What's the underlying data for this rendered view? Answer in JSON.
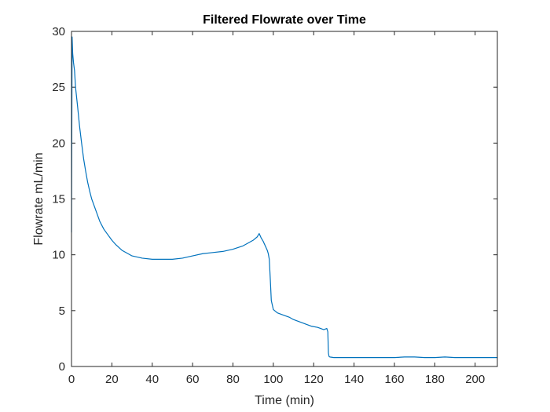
{
  "chart_data": {
    "type": "line",
    "title": "Filtered Flowrate over Time",
    "xlabel": "Time (min)",
    "ylabel": "Flowrate mL/min",
    "xlim": [
      0,
      211
    ],
    "ylim": [
      0,
      30
    ],
    "xticks": [
      0,
      20,
      40,
      60,
      80,
      100,
      120,
      140,
      160,
      180,
      200
    ],
    "yticks": [
      0,
      5,
      10,
      15,
      20,
      25,
      30
    ],
    "xtick_labels": [
      "0",
      "20",
      "40",
      "60",
      "80",
      "100",
      "120",
      "140",
      "160",
      "180",
      "200"
    ],
    "ytick_labels": [
      "0",
      "5",
      "10",
      "15",
      "20",
      "25",
      "30"
    ],
    "grid": false,
    "box": true,
    "line_color": "#0072BD",
    "axis_color": "#262626",
    "series": [
      {
        "x": [
          0,
          0.3,
          0.6,
          1,
          1.5,
          2,
          3,
          4,
          5,
          6,
          7,
          8,
          9,
          10,
          12,
          14,
          16,
          18,
          20,
          22,
          25,
          28,
          30,
          35,
          40,
          45,
          50,
          55,
          60,
          65,
          70,
          75,
          80,
          85,
          88,
          90,
          92,
          93,
          94,
          95,
          96,
          97,
          97.5,
          98,
          98.5,
          99,
          100,
          102,
          105,
          108,
          110,
          113,
          116,
          119,
          122,
          125,
          126.5,
          127,
          127.3,
          127.6,
          128,
          130,
          135,
          140,
          145,
          150,
          155,
          160,
          165,
          170,
          175,
          180,
          185,
          190,
          195,
          200,
          205,
          211
        ],
        "y": [
          12,
          29.5,
          28,
          27.2,
          26.5,
          25,
          23.3,
          21.5,
          20,
          18.6,
          17.5,
          16.5,
          15.7,
          15,
          14,
          13,
          12.3,
          11.8,
          11.3,
          10.9,
          10.4,
          10.1,
          9.9,
          9.7,
          9.6,
          9.6,
          9.6,
          9.7,
          9.9,
          10.1,
          10.2,
          10.3,
          10.5,
          10.8,
          11.1,
          11.3,
          11.6,
          11.9,
          11.5,
          11.2,
          10.8,
          10.4,
          10.1,
          9.6,
          7.8,
          5.9,
          5.1,
          4.8,
          4.6,
          4.4,
          4.2,
          4.0,
          3.8,
          3.6,
          3.5,
          3.3,
          3.4,
          3.1,
          1.2,
          0.9,
          0.85,
          0.8,
          0.8,
          0.8,
          0.8,
          0.8,
          0.8,
          0.8,
          0.85,
          0.85,
          0.8,
          0.8,
          0.85,
          0.8,
          0.8,
          0.8,
          0.8,
          0.8
        ]
      }
    ]
  }
}
